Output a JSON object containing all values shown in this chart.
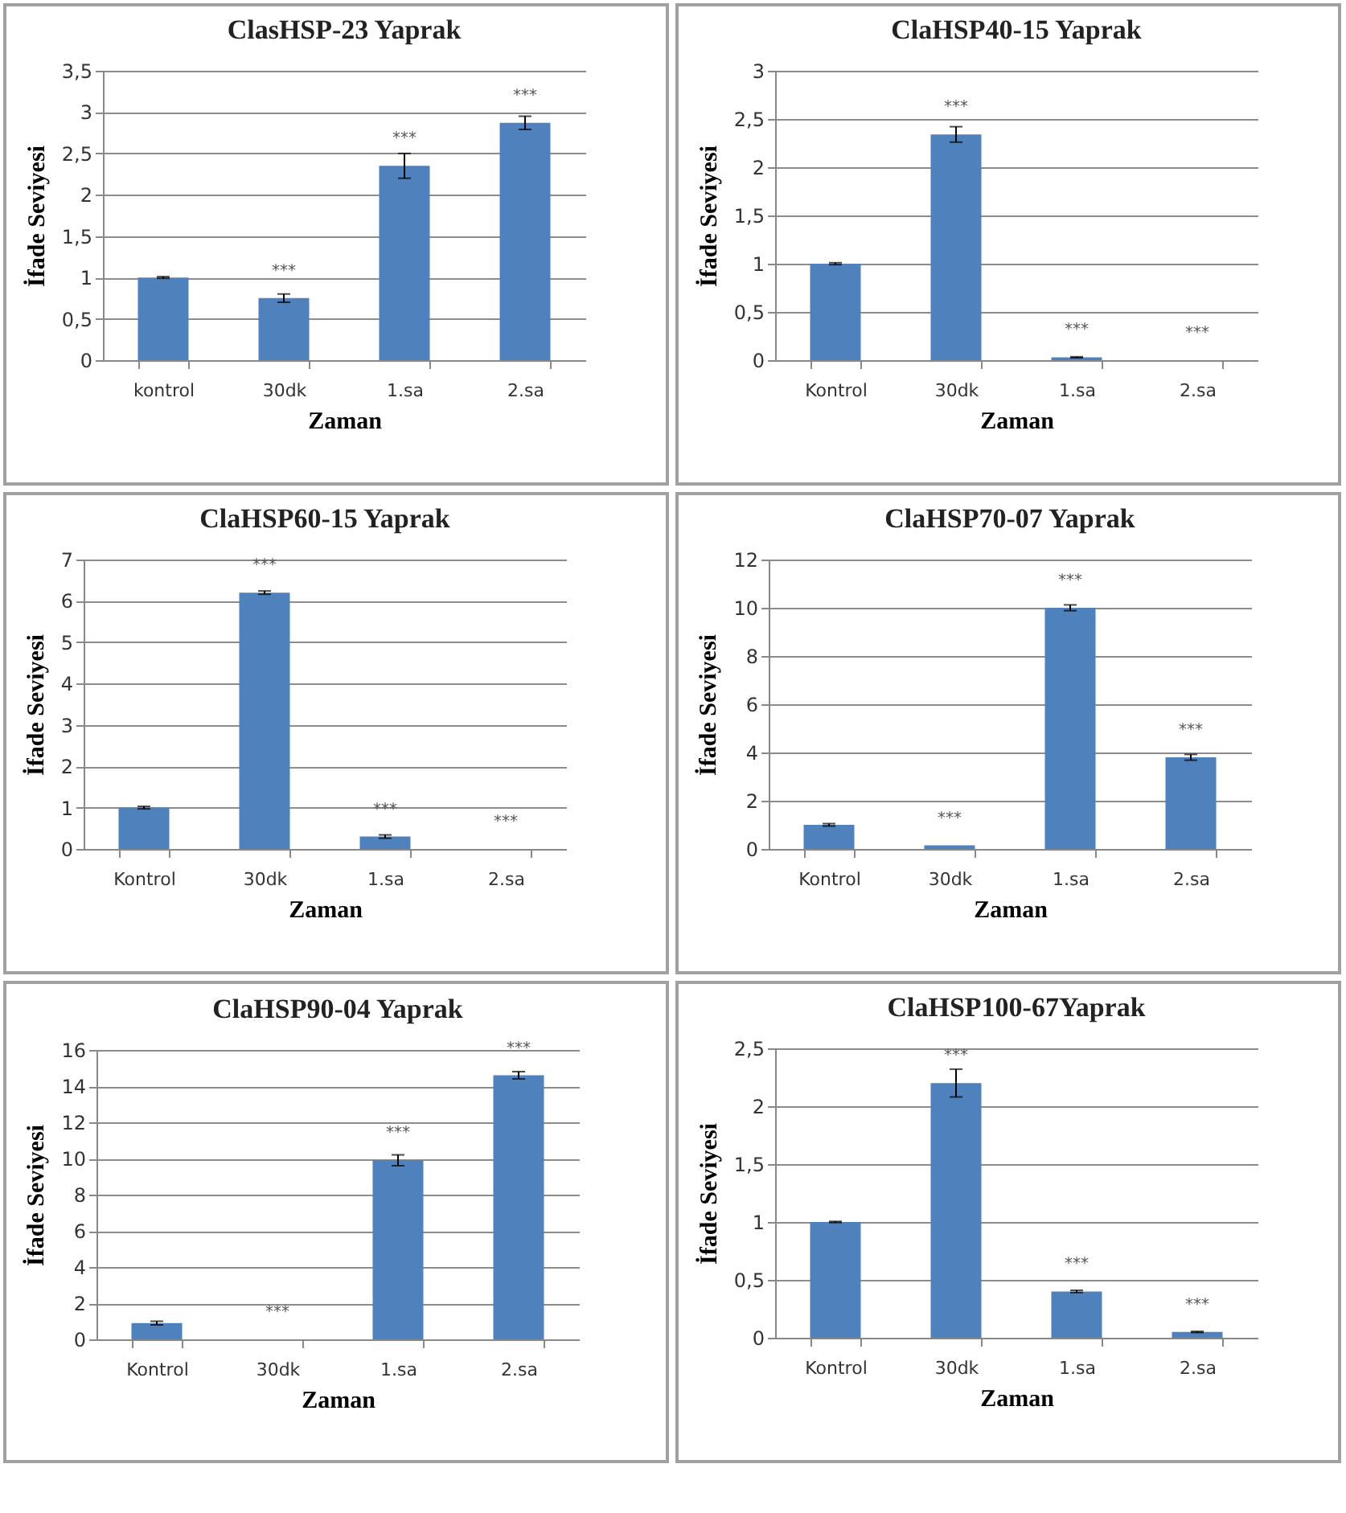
{
  "chart_data": [
    {
      "type": "bar",
      "title": "ClasHSP-23 Yaprak",
      "xlabel": "Zaman",
      "ylabel": "İfade Seviyesi",
      "categories": [
        "kontrol",
        "30dk",
        "1.sa",
        "2.sa"
      ],
      "values": [
        1,
        0.75,
        2.35,
        2.87
      ],
      "errors": [
        0.01,
        0.05,
        0.15,
        0.08
      ],
      "color": "#4f81bd",
      "ylim": [
        0,
        3.5
      ],
      "yticks": [
        0,
        {
          "value": 0.5,
          "label": "0,5"
        },
        1,
        {
          "value": 1.5,
          "label": "1,5"
        },
        2,
        {
          "value": 2.5,
          "label": "2,5"
        },
        3,
        {
          "value": 3.5,
          "label": "3,5"
        }
      ],
      "grid": "y",
      "annotations": [
        {
          "text": "***",
          "x": "30dk",
          "y": 0.75
        },
        {
          "text": "***",
          "x": "1.sa",
          "y": 2.35
        },
        {
          "text": "***",
          "x": "2.sa",
          "y": 2.87
        }
      ]
    },
    {
      "type": "bar",
      "title": "ClaHSP40-15 Yaprak",
      "xlabel": "Zaman",
      "ylabel": "İfade Seviyesi",
      "categories": [
        "Kontrol",
        "30dk",
        "1.sa",
        "2.sa"
      ],
      "values": [
        1,
        2.34,
        0.03,
        0
      ],
      "errors": [
        0.01,
        0.08,
        0.005,
        null
      ],
      "color": "#4f81bd",
      "ylim": [
        0,
        3
      ],
      "yticks": [
        0,
        {
          "value": 0.5,
          "label": "0,5"
        },
        1,
        {
          "value": 1.5,
          "label": "1,5"
        },
        2,
        {
          "value": 2.5,
          "label": "2,5"
        },
        3
      ],
      "grid": "y",
      "annotations": [
        {
          "text": "***",
          "x": "30dk",
          "y": 2.34
        },
        {
          "text": "***",
          "x": "1.sa",
          "y": 0.03
        },
        {
          "text": "***",
          "x": "2.sa",
          "y": 0
        }
      ]
    },
    {
      "type": "bar",
      "title": "ClaHSP60-15 Yaprak",
      "xlabel": "Zaman",
      "ylabel": "İfade Seviyesi",
      "categories": [
        "Kontrol",
        "30dk",
        "1.sa",
        "2.sa"
      ],
      "values": [
        1,
        6.2,
        0.3,
        0
      ],
      "errors": [
        0.03,
        0.04,
        0.04,
        null
      ],
      "color": "#4f81bd",
      "ylim": [
        0,
        7
      ],
      "yticks": [
        0,
        1,
        2,
        3,
        4,
        5,
        6,
        7
      ],
      "grid": "y",
      "annotations": [
        {
          "text": "***",
          "x": "30dk",
          "y": 6.2
        },
        {
          "text": "***",
          "x": "1.sa",
          "y": 0.3
        },
        {
          "text": "***",
          "x": "2.sa",
          "y": 0
        }
      ]
    },
    {
      "type": "bar",
      "title": "ClaHSP70-07 Yaprak",
      "xlabel": "Zaman",
      "ylabel": "İfade Seviyesi",
      "categories": [
        "Kontrol",
        "30dk",
        "1.sa",
        "2.sa"
      ],
      "values": [
        1,
        0.15,
        10,
        3.8
      ],
      "errors": [
        0.05,
        null,
        0.12,
        0.12
      ],
      "color": "#4f81bd",
      "ylim": [
        0,
        12
      ],
      "yticks": [
        0,
        2,
        4,
        6,
        8,
        10,
        12
      ],
      "grid": "y",
      "annotations": [
        {
          "text": "***",
          "x": "30dk",
          "y": 0.15
        },
        {
          "text": "***",
          "x": "1.sa",
          "y": 10
        },
        {
          "text": "***",
          "x": "2.sa",
          "y": 3.8
        }
      ]
    },
    {
      "type": "bar",
      "title": "ClaHSP90-04 Yaprak",
      "xlabel": "Zaman",
      "ylabel": "İfade Seviyesi",
      "categories": [
        "Kontrol",
        "30dk",
        "1.sa",
        "2.sa"
      ],
      "values": [
        0.9,
        0,
        9.9,
        14.6
      ],
      "errors": [
        0.1,
        null,
        0.3,
        0.2
      ],
      "color": "#4f81bd",
      "ylim": [
        0,
        16
      ],
      "yticks": [
        0,
        2,
        4,
        6,
        8,
        10,
        12,
        14,
        16
      ],
      "grid": "y",
      "annotations": [
        {
          "text": "***",
          "x": "30dk",
          "y": 0
        },
        {
          "text": "***",
          "x": "1.sa",
          "y": 9.9
        },
        {
          "text": "***",
          "x": "2.sa",
          "y": 14.6
        }
      ]
    },
    {
      "type": "bar",
      "title": "ClaHSP100-67Yaprak",
      "xlabel": "Zaman",
      "ylabel": "İfade Seviyesi",
      "categories": [
        "Kontrol",
        "30dk",
        "1.sa",
        "2.sa"
      ],
      "values": [
        1,
        2.2,
        0.4,
        0.05
      ],
      "errors": [
        0.005,
        0.12,
        0.01,
        0.005
      ],
      "color": "#4f81bd",
      "ylim": [
        0,
        2.5
      ],
      "yticks": [
        0,
        {
          "value": 0.5,
          "label": "0,5"
        },
        1,
        {
          "value": 1.5,
          "label": "1,5"
        },
        2,
        {
          "value": 2.5,
          "label": "2,5"
        }
      ],
      "grid": "y",
      "annotations": [
        {
          "text": "***",
          "x": "30dk",
          "y": 2.2
        },
        {
          "text": "***",
          "x": "1.sa",
          "y": 0.4
        },
        {
          "text": "***",
          "x": "2.sa",
          "y": 0.05
        }
      ]
    }
  ]
}
